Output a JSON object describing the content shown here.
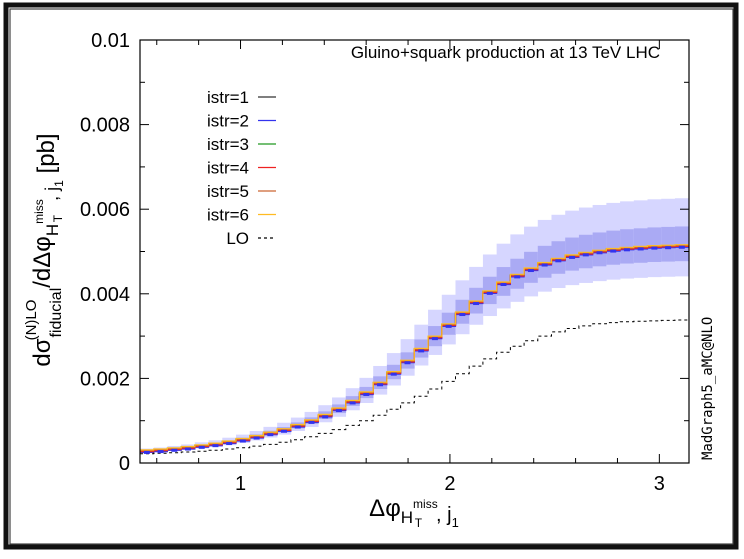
{
  "chart_data": {
    "type": "line",
    "title": "Gluino+squark production at 13 TeV LHC",
    "watermark": "MadGraph5_aMC@NLO",
    "ylabel_main": "dσ",
    "ylabel_super": "(N)LO",
    "ylabel_sub": "fiducial",
    "ylabel_mid": "/dΔφ",
    "ylabel_sub2": "H",
    "ylabel_sub2_super": "miss",
    "ylabel_sub2_sub": "T",
    "ylabel_tail": ", j",
    "ylabel_tail_sub": "1",
    "ylabel_unit": " [pb]",
    "xlabel_main": "Δφ",
    "xlabel_sub": "H",
    "xlabel_sub_super": "miss",
    "xlabel_sub_sub": "T",
    "xlabel_tail": ", j",
    "xlabel_tail_sub": "1",
    "xlim": [
      0.52,
      3.14159
    ],
    "ylim": [
      0,
      0.01
    ],
    "yticks": [
      0,
      0.002,
      0.004,
      0.006,
      0.008,
      0.01
    ],
    "ytick_labels": [
      "0",
      "0.002",
      "0.004",
      "0.006",
      "0.008",
      "0.01"
    ],
    "xticks": [
      1,
      2,
      3
    ],
    "xtick_labels": [
      "1",
      "2",
      "3"
    ],
    "legend_placement": "top-left",
    "x_bin_edges": [
      0.52,
      0.5855,
      0.651,
      0.7165,
      0.782,
      0.8475,
      0.913,
      0.9785,
      1.044,
      1.1095,
      1.175,
      1.2405,
      1.306,
      1.3715,
      1.437,
      1.5025,
      1.568,
      1.6335,
      1.699,
      1.7645,
      1.83,
      1.8955,
      1.961,
      2.0265,
      2.092,
      2.1575,
      2.223,
      2.2885,
      2.354,
      2.4195,
      2.485,
      2.5505,
      2.616,
      2.6815,
      2.747,
      2.8125,
      2.878,
      2.9435,
      3.009,
      3.0745,
      3.14
    ],
    "nlo_central": [
      0.00028,
      0.0003,
      0.00033,
      0.00036,
      0.0004,
      0.00044,
      0.00049,
      0.00055,
      0.00062,
      0.0007,
      0.00078,
      0.00088,
      0.00099,
      0.00112,
      0.00127,
      0.00145,
      0.00165,
      0.00188,
      0.00213,
      0.0024,
      0.00268,
      0.00297,
      0.00326,
      0.00354,
      0.0038,
      0.00404,
      0.00425,
      0.00443,
      0.00458,
      0.00471,
      0.00481,
      0.00489,
      0.00495,
      0.005,
      0.00504,
      0.00507,
      0.00509,
      0.00511,
      0.00512,
      0.00513
    ],
    "band_outer_up_frac": 0.22,
    "band_outer_down_frac": 0.14,
    "band_inner_up_frac": 0.09,
    "band_inner_down_frac": 0.07,
    "lo_values": [
      0.00022,
      0.00023,
      0.00024,
      0.00026,
      0.00028,
      0.0003,
      0.00033,
      0.00036,
      0.0004,
      0.00044,
      0.00049,
      0.00055,
      0.00062,
      0.0007,
      0.00079,
      0.00089,
      0.001,
      0.00113,
      0.00127,
      0.00142,
      0.00158,
      0.00175,
      0.00193,
      0.00211,
      0.00229,
      0.00246,
      0.00262,
      0.00276,
      0.00289,
      0.003,
      0.0031,
      0.00318,
      0.00324,
      0.00329,
      0.00332,
      0.00334,
      0.00335,
      0.00336,
      0.00337,
      0.00338
    ],
    "series": [
      {
        "name": "istr=1",
        "color": "#333333",
        "offset": 0.0
      },
      {
        "name": "istr=2",
        "color": "#3333ee",
        "offset": -3e-05
      },
      {
        "name": "istr=3",
        "color": "#229922",
        "offset": 2e-05
      },
      {
        "name": "istr=4",
        "color": "#ee2222",
        "offset": -1e-05
      },
      {
        "name": "istr=5",
        "color": "#cc6633",
        "offset": 1e-05
      },
      {
        "name": "istr=6",
        "color": "#ffbb22",
        "offset": 3e-05
      },
      {
        "name": "LO",
        "color": "#000000",
        "dashed": true
      }
    ],
    "colors": {
      "band_outer": "#d6d6ff",
      "band_inner": "#aaaaf4",
      "frame_border": "#111111"
    }
  }
}
